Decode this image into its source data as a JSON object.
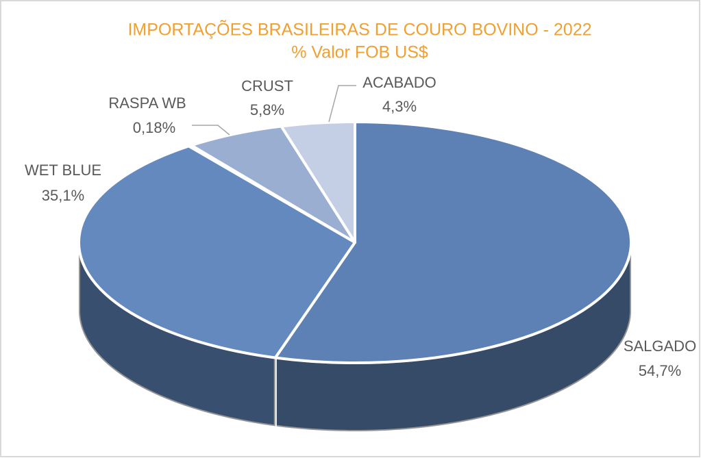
{
  "chart_data": {
    "type": "pie",
    "title": "IMPORTAÇÕES BRASILEIRAS DE COURO BOVINO - 2022",
    "subtitle": "% Valor FOB US$",
    "categories": [
      "SALGADO",
      "WET BLUE",
      "RASPA WB",
      "CRUST",
      "ACABADO"
    ],
    "values": [
      54.7,
      35.1,
      0.18,
      5.8,
      4.3
    ],
    "value_labels": [
      "54,7%",
      "35,1%",
      "0,18%",
      "5,8%",
      "4,3%"
    ],
    "colors": [
      "#5d81b4",
      "#6389bf",
      "#5574a8",
      "#9aaed2",
      "#c4cfe6"
    ]
  }
}
